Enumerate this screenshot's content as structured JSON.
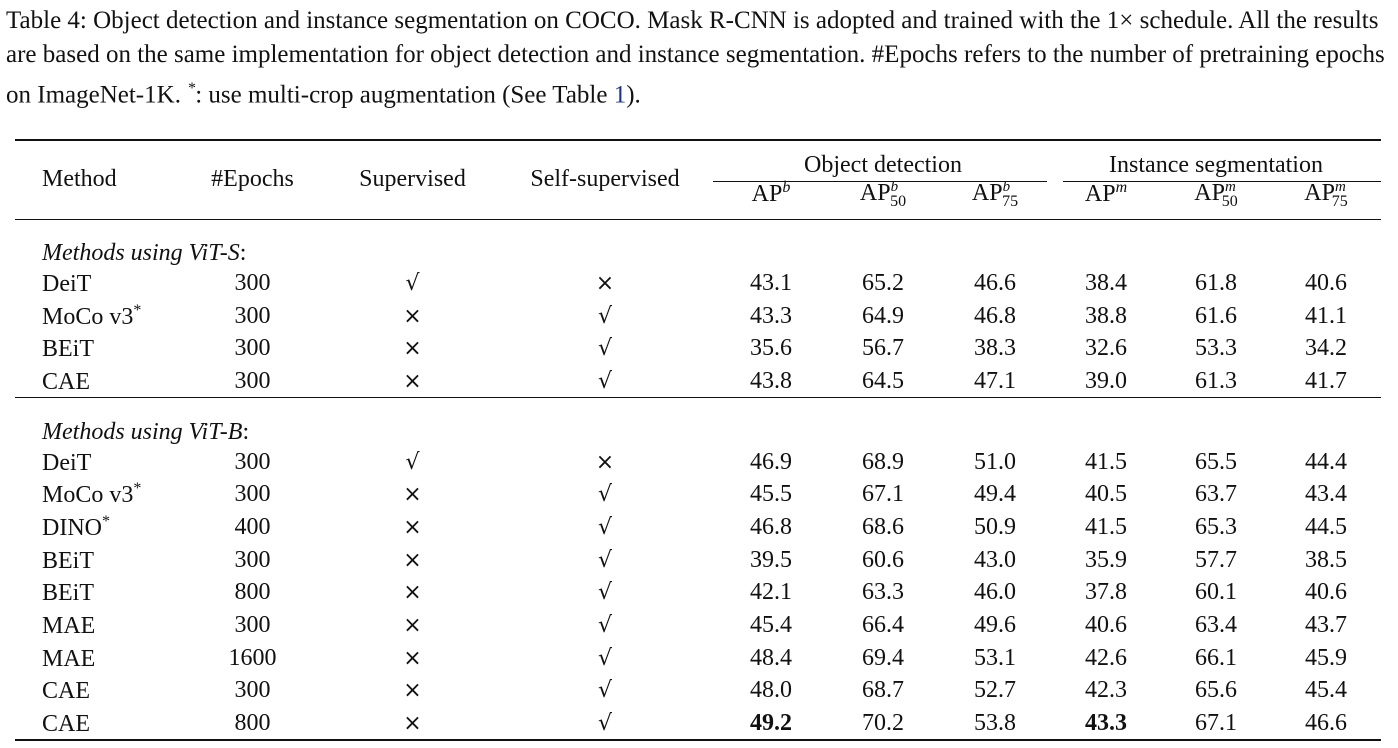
{
  "caption": {
    "text_1": "Table 4: Object detection and instance segmentation on COCO. Mask R-CNN is adopted and trained with the 1× schedule. All the results are based on the same implementation for object detection and instance segmentation. #Epochs refers to the number of pretraining epochs on ImageNet-1K. ",
    "star": "*",
    "text_2": ": use multi-crop augmentation (See Table ",
    "ref": "1",
    "text_3": ")."
  },
  "headers": {
    "method": "Method",
    "epochs": "#Epochs",
    "supervised": "Supervised",
    "self_supervised": "Self-supervised",
    "object_detection": "Object detection",
    "instance_segmentation": "Instance segmentation",
    "ap": "AP",
    "sup_b": "b",
    "sup_m": "m",
    "sub_50": "50",
    "sub_75": "75"
  },
  "marks": {
    "check": "√",
    "cross": "×",
    "star": "*"
  },
  "groups": [
    {
      "label_prefix": "Methods using ",
      "label_model": "ViT-S",
      "label_suffix": ":",
      "rows": [
        {
          "method": "DeiT",
          "star": "",
          "epochs": "300",
          "supervised": "√",
          "self_supervised": "×",
          "ap_b": "43.1",
          "ap_b50": "65.2",
          "ap_b75": "46.6",
          "ap_m": "38.4",
          "ap_m50": "61.8",
          "ap_m75": "40.6"
        },
        {
          "method": "MoCo v3",
          "star": "*",
          "epochs": "300",
          "supervised": "×",
          "self_supervised": "√",
          "ap_b": "43.3",
          "ap_b50": "64.9",
          "ap_b75": "46.8",
          "ap_m": "38.8",
          "ap_m50": "61.6",
          "ap_m75": "41.1"
        },
        {
          "method": "BEiT",
          "star": "",
          "epochs": "300",
          "supervised": "×",
          "self_supervised": "√",
          "ap_b": "35.6",
          "ap_b50": "56.7",
          "ap_b75": "38.3",
          "ap_m": "32.6",
          "ap_m50": "53.3",
          "ap_m75": "34.2"
        },
        {
          "method": "CAE",
          "star": "",
          "epochs": "300",
          "supervised": "×",
          "self_supervised": "√",
          "ap_b": "43.8",
          "ap_b50": "64.5",
          "ap_b75": "47.1",
          "ap_m": "39.0",
          "ap_m50": "61.3",
          "ap_m75": "41.7"
        }
      ]
    },
    {
      "label_prefix": "Methods using ",
      "label_model": "ViT-B",
      "label_suffix": ":",
      "rows": [
        {
          "method": "DeiT",
          "star": "",
          "epochs": "300",
          "supervised": "√",
          "self_supervised": "×",
          "ap_b": "46.9",
          "ap_b50": "68.9",
          "ap_b75": "51.0",
          "ap_m": "41.5",
          "ap_m50": "65.5",
          "ap_m75": "44.4"
        },
        {
          "method": "MoCo v3",
          "star": "*",
          "epochs": "300",
          "supervised": "×",
          "self_supervised": "√",
          "ap_b": "45.5",
          "ap_b50": "67.1",
          "ap_b75": "49.4",
          "ap_m": "40.5",
          "ap_m50": "63.7",
          "ap_m75": "43.4"
        },
        {
          "method": "DINO",
          "star": "*",
          "epochs": "400",
          "supervised": "×",
          "self_supervised": "√",
          "ap_b": "46.8",
          "ap_b50": "68.6",
          "ap_b75": "50.9",
          "ap_m": "41.5",
          "ap_m50": "65.3",
          "ap_m75": "44.5"
        },
        {
          "method": "BEiT",
          "star": "",
          "epochs": "300",
          "supervised": "×",
          "self_supervised": "√",
          "ap_b": "39.5",
          "ap_b50": "60.6",
          "ap_b75": "43.0",
          "ap_m": "35.9",
          "ap_m50": "57.7",
          "ap_m75": "38.5"
        },
        {
          "method": "BEiT",
          "star": "",
          "epochs": "800",
          "supervised": "×",
          "self_supervised": "√",
          "ap_b": "42.1",
          "ap_b50": "63.3",
          "ap_b75": "46.0",
          "ap_m": "37.8",
          "ap_m50": "60.1",
          "ap_m75": "40.6"
        },
        {
          "method": "MAE",
          "star": "",
          "epochs": "300",
          "supervised": "×",
          "self_supervised": "√",
          "ap_b": "45.4",
          "ap_b50": "66.4",
          "ap_b75": "49.6",
          "ap_m": "40.6",
          "ap_m50": "63.4",
          "ap_m75": "43.7"
        },
        {
          "method": "MAE",
          "star": "",
          "epochs": "1600",
          "supervised": "×",
          "self_supervised": "√",
          "ap_b": "48.4",
          "ap_b50": "69.4",
          "ap_b75": "53.1",
          "ap_m": "42.6",
          "ap_m50": "66.1",
          "ap_m75": "45.9"
        },
        {
          "method": "CAE",
          "star": "",
          "epochs": "300",
          "supervised": "×",
          "self_supervised": "√",
          "ap_b": "48.0",
          "ap_b50": "68.7",
          "ap_b75": "52.7",
          "ap_m": "42.3",
          "ap_m50": "65.6",
          "ap_m75": "45.4"
        },
        {
          "method": "CAE",
          "star": "",
          "epochs": "800",
          "supervised": "×",
          "self_supervised": "√",
          "ap_b": "49.2",
          "ap_b50": "70.2",
          "ap_b75": "53.8",
          "ap_m": "43.3",
          "ap_m50": "67.1",
          "ap_m75": "46.6",
          "bold": [
            "ap_b",
            "ap_m"
          ]
        }
      ]
    }
  ]
}
